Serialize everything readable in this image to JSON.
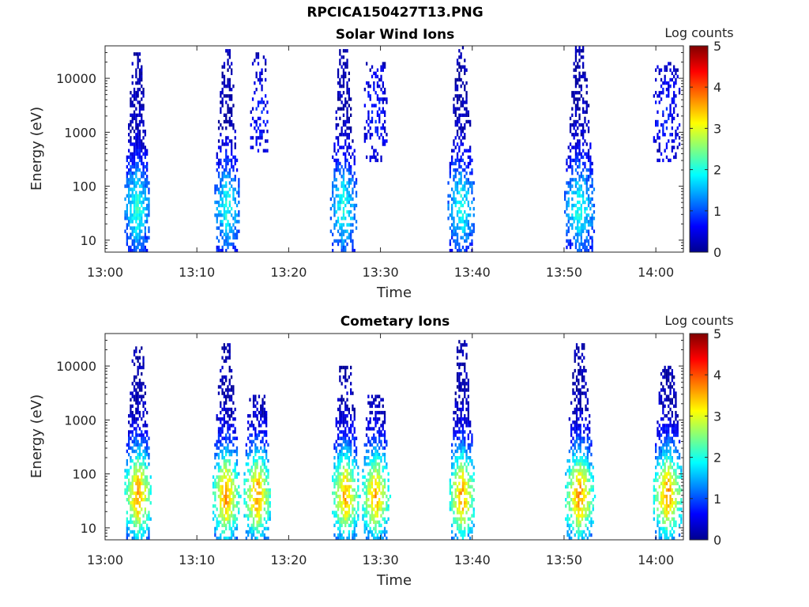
{
  "figure": {
    "title": "RPCICA150427T13.PNG"
  },
  "colors": {
    "jet_stops": [
      "#00008f",
      "#0000ff",
      "#0080ff",
      "#00ffff",
      "#80ff80",
      "#ffff00",
      "#ff8000",
      "#ff0000",
      "#800000"
    ],
    "axis": "#262626"
  },
  "chart_data": [
    {
      "type": "heatmap",
      "title": "Solar Wind Ions",
      "xlabel": "Time",
      "ylabel": "Energy (eV)",
      "x_ticks": [
        "13:00",
        "13:10",
        "13:20",
        "13:30",
        "13:40",
        "13:50",
        "14:00"
      ],
      "x_tick_values_min": [
        0,
        10,
        20,
        30,
        40,
        50,
        60
      ],
      "xlim_min": [
        0,
        63
      ],
      "y_scale": "log",
      "y_ticks": [
        "10",
        "100",
        "1000",
        "10000"
      ],
      "y_tick_values": [
        10,
        100,
        1000,
        10000
      ],
      "ylim": [
        6,
        40000
      ],
      "colorbar": {
        "label": "Log counts",
        "ticks": [
          "0",
          "1",
          "2",
          "3",
          "4",
          "5"
        ],
        "range": [
          0,
          5
        ]
      },
      "bursts": [
        {
          "center_min": 3.5,
          "width_min": 2.8,
          "emin": 6,
          "emax": 30000,
          "peak_energy": 40,
          "peak_log": 2.0,
          "density": 0.85
        },
        {
          "center_min": 13.3,
          "width_min": 2.8,
          "emin": 6,
          "emax": 35000,
          "peak_energy": 40,
          "peak_log": 1.9,
          "density": 0.6
        },
        {
          "center_min": 16.8,
          "width_min": 2.0,
          "emin": 400,
          "emax": 30000,
          "peak_energy": 2000,
          "peak_log": 0.6,
          "density": 0.35
        },
        {
          "center_min": 26.0,
          "width_min": 3.0,
          "emin": 6,
          "emax": 35000,
          "peak_energy": 40,
          "peak_log": 1.9,
          "density": 0.6
        },
        {
          "center_min": 29.5,
          "width_min": 2.6,
          "emin": 300,
          "emax": 20000,
          "peak_energy": 2000,
          "peak_log": 0.6,
          "density": 0.35
        },
        {
          "center_min": 38.8,
          "width_min": 3.0,
          "emin": 6,
          "emax": 40000,
          "peak_energy": 40,
          "peak_log": 1.9,
          "density": 0.6
        },
        {
          "center_min": 51.7,
          "width_min": 3.4,
          "emin": 6,
          "emax": 40000,
          "peak_energy": 40,
          "peak_log": 1.9,
          "density": 0.6
        },
        {
          "center_min": 61.2,
          "width_min": 3.0,
          "emin": 300,
          "emax": 20000,
          "peak_energy": 2000,
          "peak_log": 0.6,
          "density": 0.35
        }
      ]
    },
    {
      "type": "heatmap",
      "title": "Cometary Ions",
      "xlabel": "Time",
      "ylabel": "Energy (eV)",
      "x_ticks": [
        "13:00",
        "13:10",
        "13:20",
        "13:30",
        "13:40",
        "13:50",
        "14:00"
      ],
      "x_tick_values_min": [
        0,
        10,
        20,
        30,
        40,
        50,
        60
      ],
      "xlim_min": [
        0,
        63
      ],
      "y_scale": "log",
      "y_ticks": [
        "10",
        "100",
        "1000",
        "10000"
      ],
      "y_tick_values": [
        10,
        100,
        1000,
        10000
      ],
      "ylim": [
        6,
        40000
      ],
      "colorbar": {
        "label": "Log counts",
        "ticks": [
          "0",
          "1",
          "2",
          "3",
          "4",
          "5"
        ],
        "range": [
          0,
          5
        ]
      },
      "bursts": [
        {
          "center_min": 3.6,
          "width_min": 3.0,
          "emin": 6,
          "emax": 25000,
          "peak_energy": 40,
          "peak_log": 3.6,
          "density": 0.75
        },
        {
          "center_min": 13.2,
          "width_min": 3.0,
          "emin": 6,
          "emax": 25000,
          "peak_energy": 40,
          "peak_log": 3.6,
          "density": 0.7
        },
        {
          "center_min": 16.6,
          "width_min": 3.0,
          "emin": 6,
          "emax": 3000,
          "peak_energy": 40,
          "peak_log": 3.6,
          "density": 0.7
        },
        {
          "center_min": 26.2,
          "width_min": 3.0,
          "emin": 6,
          "emax": 10000,
          "peak_energy": 40,
          "peak_log": 3.5,
          "density": 0.7
        },
        {
          "center_min": 29.5,
          "width_min": 3.0,
          "emin": 6,
          "emax": 3000,
          "peak_energy": 40,
          "peak_log": 3.5,
          "density": 0.7
        },
        {
          "center_min": 38.9,
          "width_min": 2.8,
          "emin": 6,
          "emax": 30000,
          "peak_energy": 40,
          "peak_log": 3.6,
          "density": 0.7
        },
        {
          "center_min": 51.7,
          "width_min": 3.2,
          "emin": 6,
          "emax": 25000,
          "peak_energy": 40,
          "peak_log": 3.6,
          "density": 0.7
        },
        {
          "center_min": 61.3,
          "width_min": 3.2,
          "emin": 6,
          "emax": 10000,
          "peak_energy": 40,
          "peak_log": 3.6,
          "density": 0.7
        }
      ]
    }
  ]
}
